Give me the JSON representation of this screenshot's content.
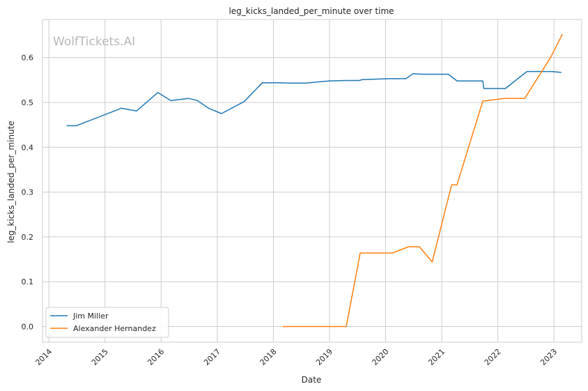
{
  "chart_data": {
    "type": "line",
    "title": "leg_kicks_landed_per_minute over time",
    "xlabel": "Date",
    "ylabel": "leg_kicks_landed_per_minute",
    "watermark": "WolfTickets.AI",
    "x_ticks": [
      "2014",
      "2015",
      "2016",
      "2017",
      "2018",
      "2019",
      "2020",
      "2021",
      "2022",
      "2023"
    ],
    "y_ticks": [
      "0.0",
      "0.1",
      "0.2",
      "0.3",
      "0.4",
      "0.5",
      "0.6"
    ],
    "xlim": [
      "2013-11-20",
      "2023-07-01"
    ],
    "ylim": [
      -0.035,
      0.685
    ],
    "grid": true,
    "legend": "lower-left",
    "series": [
      {
        "name": "Jim Miller",
        "color": "#1f77b4",
        "points": [
          [
            "2014-04-26",
            0.448
          ],
          [
            "2014-06-28",
            0.448
          ],
          [
            "2015-04-18",
            0.487
          ],
          [
            "2015-07-25",
            0.481
          ],
          [
            "2015-12-11",
            0.522
          ],
          [
            "2016-03-05",
            0.504
          ],
          [
            "2016-06-25",
            0.509
          ],
          [
            "2016-08-20",
            0.505
          ],
          [
            "2016-11-05",
            0.487
          ],
          [
            "2017-01-28",
            0.475
          ],
          [
            "2017-06-25",
            0.502
          ],
          [
            "2017-10-21",
            0.544
          ],
          [
            "2018-02-18",
            0.544
          ],
          [
            "2018-04-21",
            0.543
          ],
          [
            "2018-07-28",
            0.543
          ],
          [
            "2018-12-29",
            0.548
          ],
          [
            "2019-04-13",
            0.549
          ],
          [
            "2019-07-13",
            0.549
          ],
          [
            "2019-08-03",
            0.551
          ],
          [
            "2020-01-25",
            0.553
          ],
          [
            "2020-05-13",
            0.553
          ],
          [
            "2020-06-27",
            0.564
          ],
          [
            "2020-08-29",
            0.563
          ],
          [
            "2021-02-13",
            0.563
          ],
          [
            "2021-04-10",
            0.548
          ],
          [
            "2021-09-25",
            0.548
          ],
          [
            "2021-10-02",
            0.531
          ],
          [
            "2022-02-19",
            0.531
          ],
          [
            "2022-07-09",
            0.569
          ],
          [
            "2022-12-17",
            0.569
          ],
          [
            "2023-02-18",
            0.567
          ]
        ]
      },
      {
        "name": "Alexander Hernandez",
        "color": "#ff7f0e",
        "points": [
          [
            "2018-03-03",
            0.0
          ],
          [
            "2019-04-20",
            0.0
          ],
          [
            "2019-07-20",
            0.164
          ],
          [
            "2020-02-15",
            0.164
          ],
          [
            "2020-05-30",
            0.178
          ],
          [
            "2020-08-08",
            0.178
          ],
          [
            "2020-10-31",
            0.144
          ],
          [
            "2021-03-06",
            0.316
          ],
          [
            "2021-04-10",
            0.316
          ],
          [
            "2021-09-25",
            0.503
          ],
          [
            "2022-02-12",
            0.509
          ],
          [
            "2022-06-25",
            0.509
          ],
          [
            "2022-12-10",
            0.6
          ],
          [
            "2023-02-25",
            0.652
          ]
        ]
      }
    ]
  }
}
